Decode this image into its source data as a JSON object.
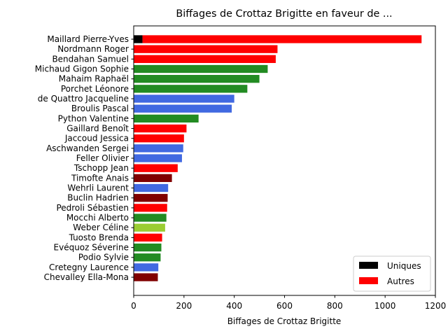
{
  "chart_data": {
    "type": "bar",
    "orientation": "horizontal",
    "title": "Biffages de Crottaz Brigitte en faveur de ...",
    "xlabel": "Biffages de Crottaz Brigitte",
    "ylabel": "",
    "xlim": [
      0,
      1200
    ],
    "xticks": [
      0,
      200,
      400,
      600,
      800,
      1000,
      1200
    ],
    "grid": false,
    "legend": {
      "placement": "lower-right",
      "entries": [
        {
          "label": "Uniques",
          "color": "#000000"
        },
        {
          "label": "Autres",
          "color": "#ff0000"
        }
      ]
    },
    "categories": [
      "Maillard Pierre-Yves",
      "Nordmann Roger",
      "Bendahan Samuel",
      "Michaud Gigon Sophie",
      "Mahaim Raphaël",
      "Porchet Léonore",
      "de Quattro Jacqueline",
      "Broulis Pascal",
      "Python Valentine",
      "Gaillard Benoît",
      "Jaccoud Jessica",
      "Aschwanden Sergei",
      "Feller Olivier",
      "Tschopp Jean",
      "Timofte Anais",
      "Wehrli Laurent",
      "Buclin Hadrien",
      "Pedroli Sébastien",
      "Mocchi Alberto",
      "Weber Céline",
      "Tuosto Brenda",
      "Evéquoz Séverine",
      "Podio Sylvie",
      "Cretegny Laurence",
      "Chevalley Ella-Mona"
    ],
    "series": [
      {
        "name": "Uniques",
        "color": "#000000",
        "values": [
          35,
          0,
          0,
          0,
          0,
          0,
          0,
          0,
          0,
          0,
          0,
          0,
          0,
          0,
          0,
          0,
          0,
          0,
          0,
          0,
          0,
          0,
          0,
          0,
          0
        ]
      },
      {
        "name": "Autres",
        "values": [
          1110,
          572,
          565,
          533,
          500,
          452,
          400,
          390,
          258,
          210,
          200,
          197,
          192,
          175,
          152,
          137,
          135,
          133,
          130,
          125,
          113,
          110,
          107,
          98,
          96
        ],
        "colors": [
          "#ff0000",
          "#ff0000",
          "#ff0000",
          "#228b22",
          "#228b22",
          "#228b22",
          "#4169e1",
          "#4169e1",
          "#228b22",
          "#ff0000",
          "#ff0000",
          "#4169e1",
          "#4169e1",
          "#ff0000",
          "#800000",
          "#4169e1",
          "#800000",
          "#ff0000",
          "#228b22",
          "#9acd32",
          "#ff0000",
          "#228b22",
          "#228b22",
          "#4169e1",
          "#800000"
        ]
      }
    ]
  }
}
